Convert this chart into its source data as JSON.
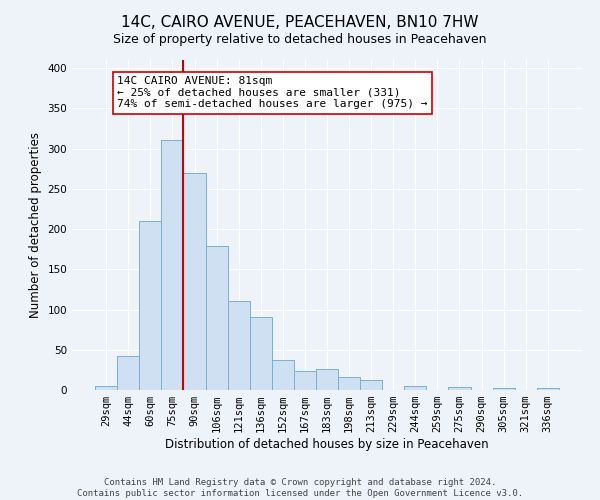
{
  "title": "14C, CAIRO AVENUE, PEACEHAVEN, BN10 7HW",
  "subtitle": "Size of property relative to detached houses in Peacehaven",
  "xlabel": "Distribution of detached houses by size in Peacehaven",
  "ylabel": "Number of detached properties",
  "bar_labels": [
    "29sqm",
    "44sqm",
    "60sqm",
    "75sqm",
    "90sqm",
    "106sqm",
    "121sqm",
    "136sqm",
    "152sqm",
    "167sqm",
    "183sqm",
    "198sqm",
    "213sqm",
    "229sqm",
    "244sqm",
    "259sqm",
    "275sqm",
    "290sqm",
    "305sqm",
    "321sqm",
    "336sqm"
  ],
  "bar_values": [
    5,
    42,
    210,
    311,
    270,
    179,
    110,
    91,
    37,
    24,
    26,
    16,
    13,
    0,
    5,
    0,
    4,
    0,
    2,
    0,
    2
  ],
  "bar_color": "#cfe0f2",
  "bar_edge_color": "#7baed4",
  "vline_x_index": 3,
  "vline_color": "#cc0000",
  "annotation_text": "14C CAIRO AVENUE: 81sqm\n← 25% of detached houses are smaller (331)\n74% of semi-detached houses are larger (975) →",
  "annotation_box_color": "#ffffff",
  "annotation_box_edge_color": "#cc0000",
  "ylim": [
    0,
    410
  ],
  "yticks": [
    0,
    50,
    100,
    150,
    200,
    250,
    300,
    350,
    400
  ],
  "footer_line1": "Contains HM Land Registry data © Crown copyright and database right 2024.",
  "footer_line2": "Contains public sector information licensed under the Open Government Licence v3.0.",
  "title_fontsize": 11,
  "subtitle_fontsize": 9,
  "axis_label_fontsize": 8.5,
  "tick_fontsize": 7.5,
  "annotation_fontsize": 8,
  "footer_fontsize": 6.5,
  "bg_color": "#eef2f9",
  "grid_color": "#ffffff",
  "fig_width": 6.0,
  "fig_height": 5.0,
  "fig_dpi": 100
}
